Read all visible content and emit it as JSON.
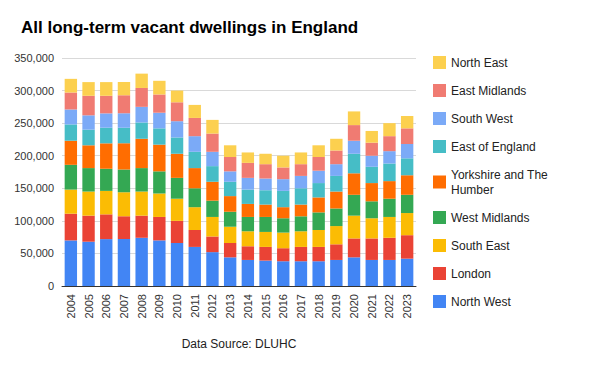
{
  "chart_data": {
    "type": "bar",
    "title": "All long-term vacant dwellings in England",
    "xlabel": "Data Source: DLUHC",
    "stacked": true,
    "grid": true,
    "legend": "right",
    "categories": [
      "2004",
      "2005",
      "2006",
      "2007",
      "2008",
      "2009",
      "2010",
      "2011",
      "2012",
      "2013",
      "2014",
      "2015",
      "2016",
      "2017",
      "2018",
      "2019",
      "2020",
      "2021",
      "2022",
      "2023"
    ],
    "ylim": [
      0,
      350000
    ],
    "yticks": [
      0,
      {
        "value": 50000,
        "label": "50,000"
      },
      {
        "value": 100000,
        "label": "100,000"
      },
      {
        "value": 150000,
        "label": "150,000"
      },
      {
        "value": 200000,
        "label": "200,000"
      },
      {
        "value": 250000,
        "label": "250,000"
      },
      {
        "value": 300000,
        "label": "300,000"
      },
      {
        "value": 350000,
        "label": "350,000"
      }
    ],
    "series": [
      {
        "name": "North West",
        "color": "#4285f4",
        "values": [
          70000,
          68000,
          72000,
          72000,
          74000,
          70000,
          66000,
          60000,
          52000,
          44000,
          40000,
          39000,
          38000,
          38000,
          38000,
          40000,
          44000,
          40000,
          40000,
          42000
        ]
      },
      {
        "name": "London",
        "color": "#ea4335",
        "values": [
          41000,
          40000,
          38000,
          35000,
          34000,
          36000,
          34000,
          26000,
          24000,
          22000,
          21000,
          21000,
          20000,
          22000,
          22000,
          24000,
          29000,
          33000,
          34000,
          36000
        ]
      },
      {
        "name": "South East",
        "color": "#fbbc04",
        "values": [
          37000,
          37000,
          36000,
          37000,
          37000,
          36000,
          34000,
          35000,
          30000,
          25000,
          23000,
          23000,
          24000,
          24000,
          26000,
          28000,
          35000,
          31000,
          32000,
          34000
        ]
      },
      {
        "name": "West Midlands",
        "color": "#34a853",
        "values": [
          38000,
          36000,
          34000,
          35000,
          36000,
          34000,
          32000,
          29000,
          25000,
          23000,
          22000,
          23000,
          22000,
          23000,
          27000,
          27000,
          32000,
          26000,
          28000,
          28000
        ]
      },
      {
        "name": "Yorkshire and The Humber",
        "color": "#ff6d01",
        "values": [
          37000,
          35000,
          39000,
          40000,
          45000,
          41000,
          37000,
          31000,
          29000,
          24000,
          20000,
          19000,
          17000,
          18000,
          23000,
          26000,
          33000,
          28000,
          27000,
          30000
        ]
      },
      {
        "name": "East of England",
        "color": "#46bdc6",
        "values": [
          25000,
          24000,
          24000,
          24000,
          25000,
          25000,
          25000,
          25000,
          24000,
          22000,
          22000,
          22000,
          25000,
          25000,
          22000,
          24000,
          30000,
          25000,
          27000,
          26000
        ]
      },
      {
        "name": "South West",
        "color": "#7baaf7",
        "values": [
          23000,
          22000,
          22000,
          22000,
          24000,
          24000,
          25000,
          24000,
          22000,
          16000,
          18000,
          18000,
          18000,
          19000,
          19000,
          18000,
          20000,
          17000,
          19000,
          22000
        ]
      },
      {
        "name": "East Midlands",
        "color": "#f07b72",
        "values": [
          26000,
          30000,
          27000,
          28000,
          29000,
          28000,
          29000,
          28000,
          28000,
          22000,
          23000,
          22000,
          18000,
          18000,
          21000,
          21000,
          24000,
          20000,
          23000,
          24000
        ]
      },
      {
        "name": "North East",
        "color": "#fcd04f",
        "values": [
          21000,
          21000,
          21000,
          20000,
          22000,
          21000,
          18000,
          20000,
          21000,
          18000,
          16000,
          16000,
          18000,
          18000,
          18000,
          18000,
          21000,
          18000,
          20000,
          19000
        ]
      }
    ]
  }
}
